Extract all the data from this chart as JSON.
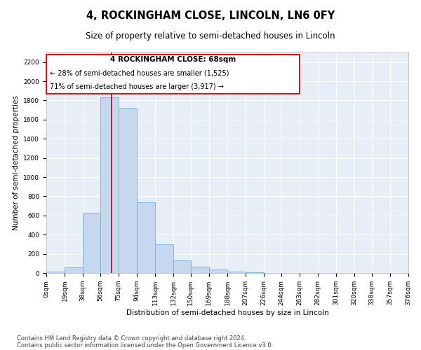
{
  "title": "4, ROCKINGHAM CLOSE, LINCOLN, LN6 0FY",
  "subtitle": "Size of property relative to semi-detached houses in Lincoln",
  "xlabel": "Distribution of semi-detached houses by size in Lincoln",
  "ylabel": "Number of semi-detached properties",
  "footnote1": "Contains HM Land Registry data © Crown copyright and database right 2024.",
  "footnote2": "Contains public sector information licensed under the Open Government Licence v3.0.",
  "property_label": "4 ROCKINGHAM CLOSE: 68sqm",
  "smaller_text": "← 28% of semi-detached houses are smaller (1,525)",
  "larger_text": "71% of semi-detached houses are larger (3,917) →",
  "property_size": 68,
  "bin_edges": [
    0,
    19,
    38,
    56,
    75,
    94,
    113,
    132,
    150,
    169,
    188,
    207,
    226,
    244,
    263,
    282,
    301,
    320,
    338,
    357,
    376
  ],
  "bar_values": [
    15,
    60,
    625,
    1830,
    1720,
    740,
    300,
    130,
    65,
    40,
    15,
    5,
    2,
    1,
    0,
    0,
    0,
    0,
    0,
    0
  ],
  "bar_color": "#c5d8f0",
  "bar_edge_color": "#7aafd4",
  "line_color": "#cc0000",
  "box_color": "#cc0000",
  "ylim": [
    0,
    2300
  ],
  "yticks": [
    0,
    200,
    400,
    600,
    800,
    1000,
    1200,
    1400,
    1600,
    1800,
    2000,
    2200
  ],
  "background_color": "#e8eef8",
  "grid_color": "#ffffff",
  "title_fontsize": 10.5,
  "subtitle_fontsize": 8.5,
  "label_fontsize": 7.5,
  "tick_fontsize": 6.5,
  "annotation_fontsize": 7,
  "footnote_fontsize": 6
}
